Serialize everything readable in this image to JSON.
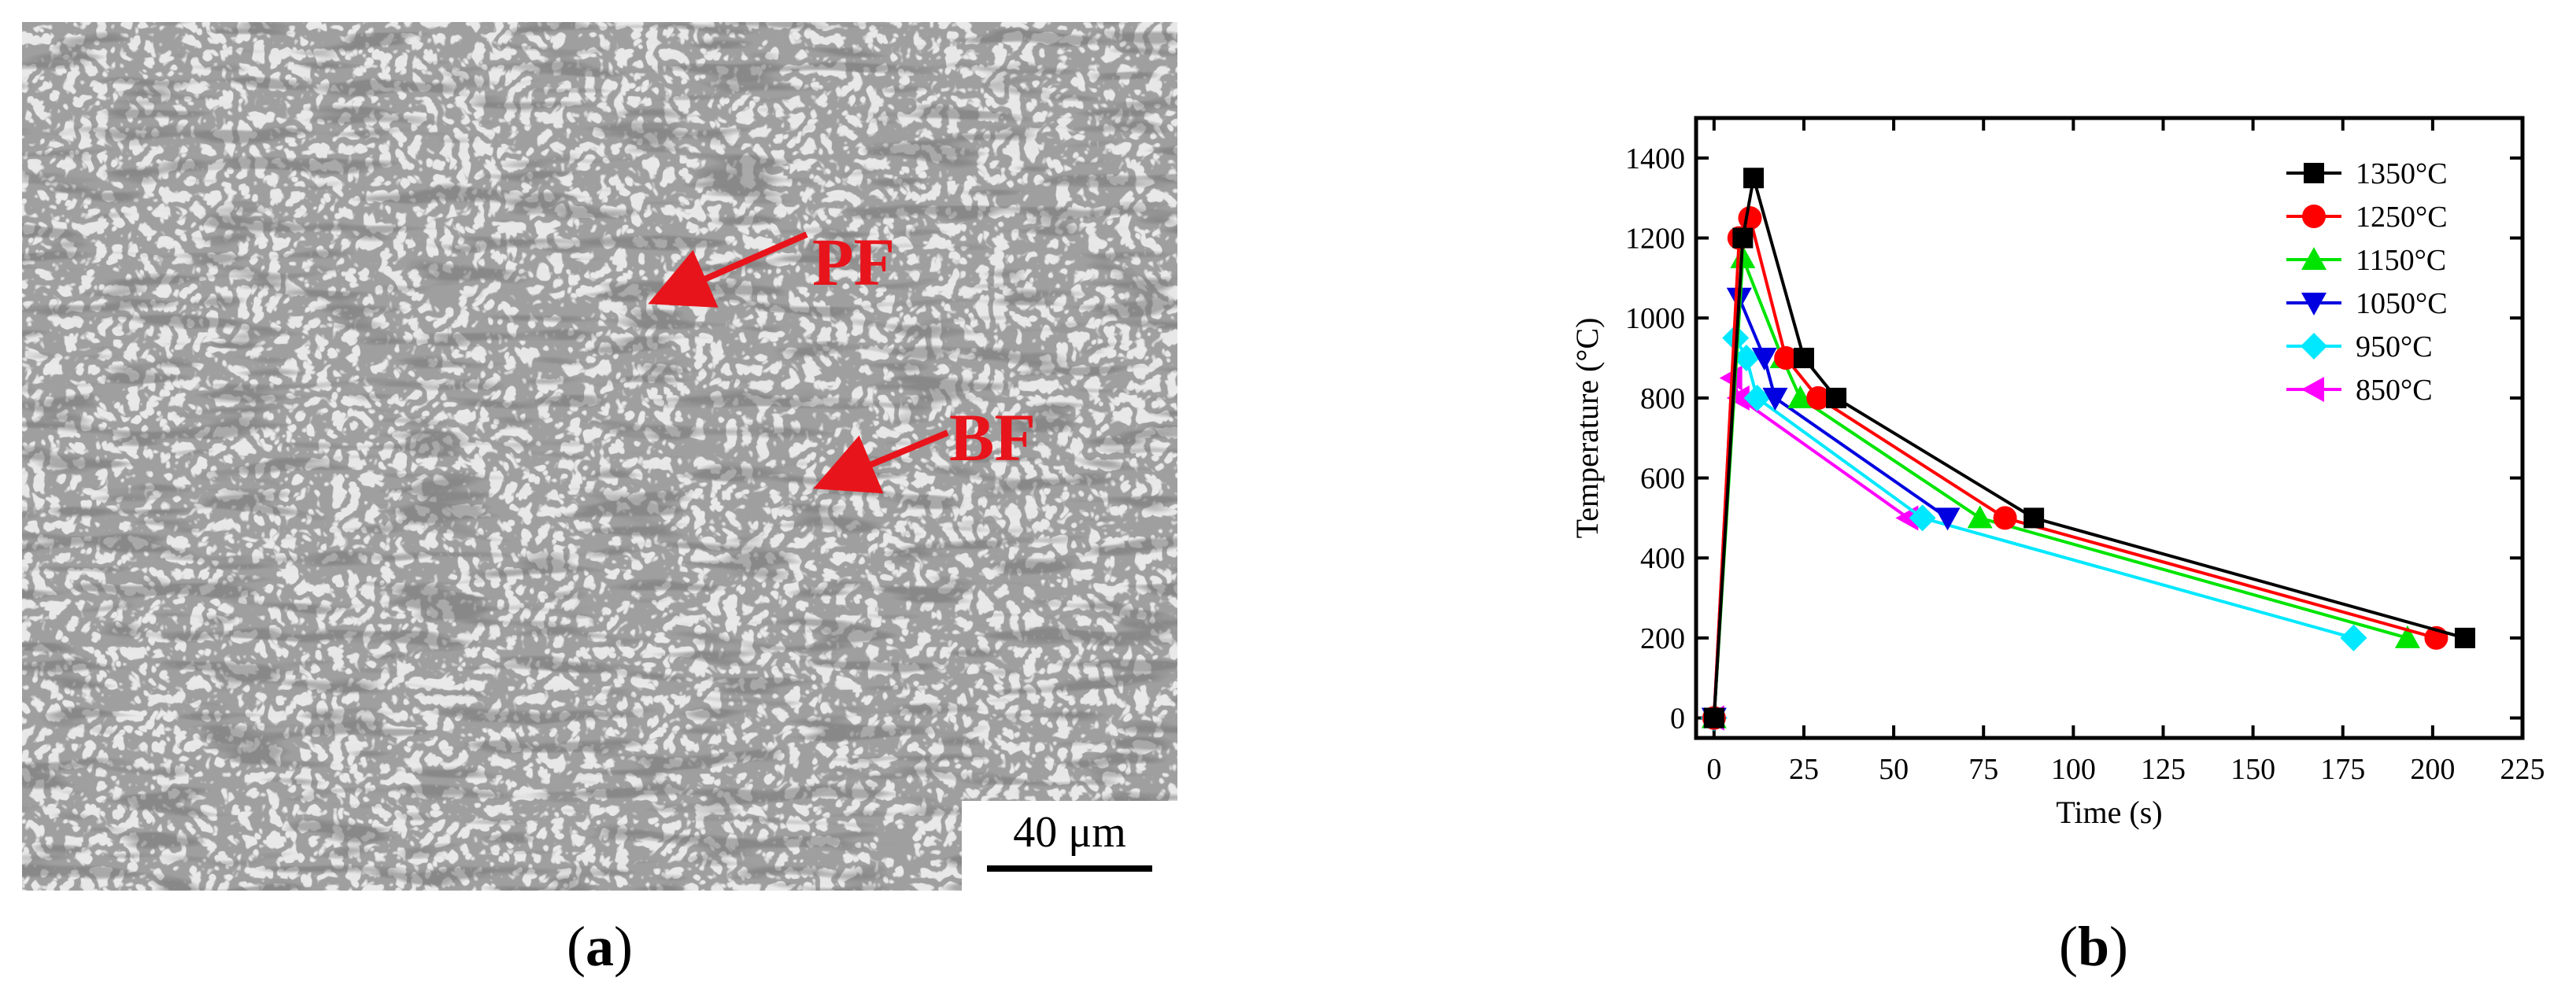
{
  "panel_a": {
    "labels": [
      "PF",
      "BF"
    ],
    "scale_bar": "40 μm",
    "caption_open": "(",
    "caption_letter": "a",
    "caption_close": ")",
    "label_color": "#e8141b"
  },
  "panel_b": {
    "caption_open": "(",
    "caption_letter": "b",
    "caption_close": ")"
  },
  "chart_data": {
    "type": "line",
    "title": "",
    "xlabel": "Time (s)",
    "ylabel": "Temperature (°C)",
    "xlim": [
      -5,
      225
    ],
    "ylim": [
      -50,
      1500
    ],
    "xticks": [
      0,
      25,
      50,
      75,
      100,
      125,
      150,
      175,
      200,
      225
    ],
    "yticks": [
      0,
      200,
      400,
      600,
      800,
      1000,
      1200,
      1400
    ],
    "grid": false,
    "legend_position": "top-right",
    "series": [
      {
        "name": "1350°C",
        "color": "#000000",
        "marker": "square",
        "x": [
          0,
          8,
          11,
          25,
          34,
          89,
          209
        ],
        "y": [
          0,
          1200,
          1350,
          900,
          800,
          500,
          200
        ]
      },
      {
        "name": "1250°C",
        "color": "#ff0000",
        "marker": "circle",
        "x": [
          0,
          7,
          10,
          20,
          29,
          81,
          201
        ],
        "y": [
          0,
          1200,
          1250,
          900,
          800,
          500,
          200
        ]
      },
      {
        "name": "1150°C",
        "color": "#00e400",
        "marker": "triangle-up",
        "x": [
          0,
          8,
          19,
          24,
          74,
          193
        ],
        "y": [
          0,
          1150,
          900,
          800,
          500,
          200
        ]
      },
      {
        "name": "1050°C",
        "color": "#0000e0",
        "marker": "triangle-down",
        "x": [
          0,
          7,
          14,
          17,
          65
        ],
        "y": [
          0,
          1050,
          900,
          800,
          500
        ]
      },
      {
        "name": "950°C",
        "color": "#00e8ff",
        "marker": "diamond",
        "x": [
          0,
          6,
          9,
          12,
          58,
          178
        ],
        "y": [
          0,
          950,
          900,
          800,
          500,
          200
        ]
      },
      {
        "name": "850°C",
        "color": "#ff00ff",
        "marker": "triangle-left",
        "x": [
          0,
          5,
          7,
          54
        ],
        "y": [
          0,
          850,
          800,
          500
        ]
      }
    ]
  }
}
